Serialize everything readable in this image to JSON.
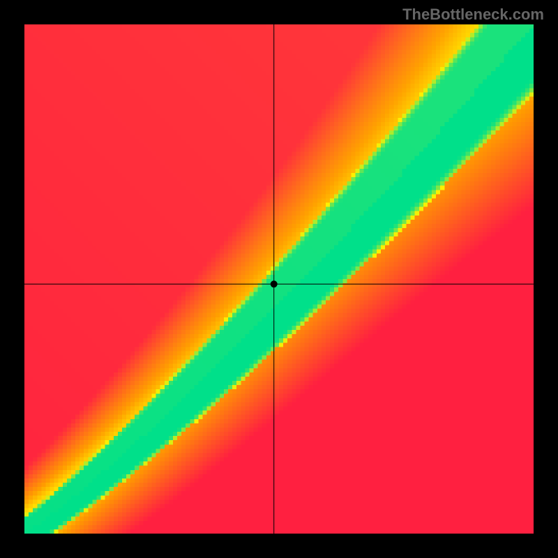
{
  "watermark_text": "TheBottleneck.com",
  "watermark_fontsize": 22,
  "watermark_color": "#666666",
  "background_color": "#000000",
  "chart": {
    "type": "heatmap",
    "canvas_size": 800,
    "margin": 35,
    "plot_size": 730,
    "grid_resolution": 120,
    "xlim": [
      0,
      1
    ],
    "ylim": [
      0,
      1
    ],
    "marker_x": 0.49,
    "marker_y": 0.49,
    "marker_radius": 5,
    "marker_color": "#000000",
    "crosshair_color": "#000000",
    "crosshair_width": 1,
    "ridge": {
      "gamma": 1.35,
      "base_width": 0.035,
      "width_scale": 0.1,
      "yellow_band_mult": 2.0
    },
    "palette": {
      "green": "#00e08a",
      "yellow": "#fff000",
      "orange": "#ff9a00",
      "red": "#ff2040"
    }
  }
}
